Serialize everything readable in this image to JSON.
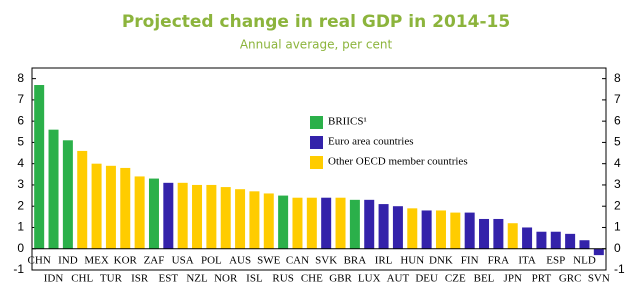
{
  "chart_data": {
    "type": "bar",
    "title": "Projected change in real GDP in 2014-15",
    "subtitle": "Annual average, per cent",
    "categories": [
      "CHN",
      "IDN",
      "IND",
      "CHL",
      "MEX",
      "TUR",
      "KOR",
      "ISR",
      "ZAF",
      "EST",
      "USA",
      "NZL",
      "POL",
      "NOR",
      "AUS",
      "ISL",
      "SWE",
      "RUS",
      "CAN",
      "CHE",
      "SVK",
      "GBR",
      "BRA",
      "LUX",
      "IRL",
      "AUT",
      "HUN",
      "DEU",
      "DNK",
      "CZE",
      "FIN",
      "BEL",
      "FRA",
      "JPN",
      "ITA",
      "PRT",
      "ESP",
      "GRC",
      "NLD",
      "SVN"
    ],
    "series": [
      {
        "name": "BRIICS¹",
        "color": "#2bb04a",
        "values": [
          7.7,
          5.6,
          5.1,
          null,
          null,
          null,
          null,
          null,
          3.3,
          null,
          null,
          null,
          null,
          null,
          null,
          null,
          null,
          2.5,
          null,
          null,
          null,
          null,
          2.3,
          null,
          null,
          null,
          null,
          null,
          null,
          null,
          null,
          null,
          null,
          null,
          null,
          null,
          null,
          null,
          null,
          null
        ]
      },
      {
        "name": "Euro area countries",
        "color": "#3322aa",
        "values": [
          null,
          null,
          null,
          null,
          null,
          null,
          null,
          null,
          null,
          3.1,
          null,
          null,
          null,
          null,
          null,
          null,
          null,
          null,
          null,
          null,
          2.4,
          null,
          null,
          2.3,
          2.1,
          2.0,
          null,
          1.8,
          null,
          null,
          1.7,
          1.4,
          1.4,
          null,
          1.0,
          0.8,
          0.8,
          0.7,
          0.4,
          -0.3
        ]
      },
      {
        "name": "Other OECD member countries",
        "color": "#ffcc00",
        "values": [
          null,
          null,
          null,
          4.6,
          4.0,
          3.9,
          3.8,
          3.4,
          null,
          null,
          3.1,
          3.0,
          3.0,
          2.9,
          2.8,
          2.7,
          2.6,
          null,
          2.4,
          2.4,
          null,
          2.4,
          null,
          null,
          null,
          null,
          1.9,
          null,
          1.8,
          1.7,
          null,
          null,
          null,
          1.2,
          null,
          null,
          null,
          null,
          null,
          null
        ]
      }
    ],
    "ylim": [
      -1,
      8.5
    ],
    "yticks": [
      -1,
      0,
      1,
      2,
      3,
      4,
      5,
      6,
      7,
      8
    ]
  }
}
